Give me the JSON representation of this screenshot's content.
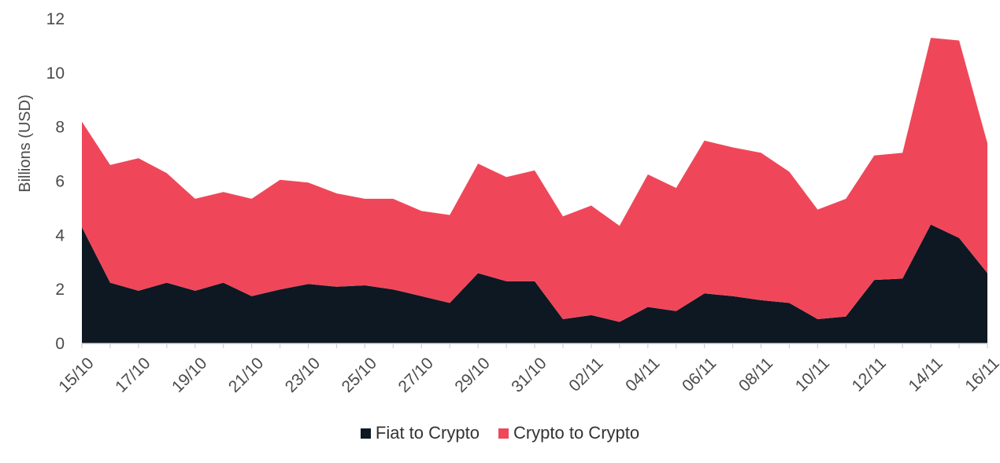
{
  "chart_data": {
    "type": "area",
    "stacked": true,
    "ylabel": "Billions (USD)",
    "ylim": [
      0,
      12
    ],
    "yticks": [
      "0",
      "2",
      "4",
      "6",
      "8",
      "10",
      "12"
    ],
    "x": [
      "15/10",
      "16/10",
      "17/10",
      "18/10",
      "19/10",
      "20/10",
      "21/10",
      "22/10",
      "23/10",
      "24/10",
      "25/10",
      "26/10",
      "27/10",
      "28/10",
      "29/10",
      "30/10",
      "31/10",
      "01/11",
      "02/11",
      "03/11",
      "04/11",
      "05/11",
      "06/11",
      "07/11",
      "08/11",
      "09/11",
      "10/11",
      "11/11",
      "12/11",
      "13/11",
      "14/11",
      "15/11",
      "16/11"
    ],
    "xtick_labels": [
      "15/10",
      "17/10",
      "19/10",
      "21/10",
      "23/10",
      "25/10",
      "27/10",
      "29/10",
      "31/10",
      "02/11",
      "04/11",
      "06/11",
      "08/11",
      "10/11",
      "12/11",
      "14/11",
      "16/11"
    ],
    "series": [
      {
        "name": "Fiat to Crypto",
        "color": "#0d1823",
        "values": [
          4.3,
          2.25,
          1.95,
          2.25,
          1.95,
          2.25,
          1.75,
          2.0,
          2.2,
          2.1,
          2.15,
          2.0,
          1.75,
          1.5,
          2.6,
          2.3,
          2.3,
          0.9,
          1.05,
          0.8,
          1.35,
          1.2,
          1.85,
          1.75,
          1.6,
          1.5,
          0.9,
          1.0,
          2.35,
          2.4,
          4.4,
          3.9,
          2.6
        ]
      },
      {
        "name": "Crypto to Crypto",
        "color": "#ef4759",
        "values": [
          3.9,
          4.35,
          4.9,
          4.05,
          3.4,
          3.35,
          3.6,
          4.05,
          3.75,
          3.45,
          3.2,
          3.35,
          3.15,
          3.25,
          4.05,
          3.85,
          4.1,
          3.8,
          4.05,
          3.55,
          4.9,
          4.55,
          5.65,
          5.5,
          5.45,
          4.85,
          4.05,
          4.35,
          4.6,
          4.65,
          6.9,
          7.3,
          4.8
        ]
      }
    ],
    "grid": false,
    "legend_position": "bottom-center"
  }
}
